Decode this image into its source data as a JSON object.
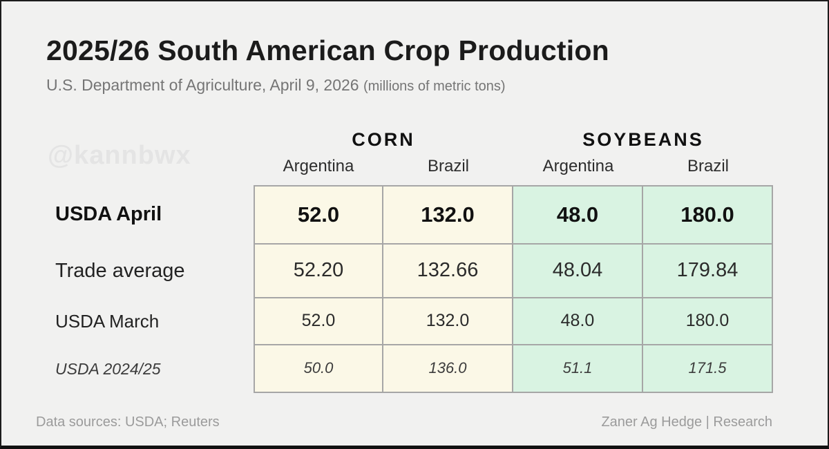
{
  "header": {
    "title": "2025/26 South American Crop Production",
    "subtitle": "U.S. Department of Agriculture, April 9, 2026",
    "subtitle_note": "(millions of metric tons)"
  },
  "watermark": "@kannbwx",
  "table": {
    "groups": [
      {
        "label": "CORN"
      },
      {
        "label": "SOYBEANS"
      }
    ],
    "columns": [
      "Argentina",
      "Brazil",
      "Argentina",
      "Brazil"
    ],
    "rows": [
      {
        "label": "USDA April",
        "values": [
          "52.0",
          "132.0",
          "48.0",
          "180.0"
        ]
      },
      {
        "label": "Trade average",
        "values": [
          "52.20",
          "132.66",
          "48.04",
          "179.84"
        ]
      },
      {
        "label": "USDA March",
        "values": [
          "52.0",
          "132.0",
          "48.0",
          "180.0"
        ]
      },
      {
        "label": "USDA 2024/25",
        "values": [
          "50.0",
          "136.0",
          "51.1",
          "171.5"
        ]
      }
    ]
  },
  "chart_data": {
    "type": "table",
    "title": "2025/26 South American Crop Production",
    "subtitle": "U.S. Department of Agriculture, April 9, 2026",
    "units": "millions of metric tons",
    "column_groups": [
      "CORN",
      "CORN",
      "SOYBEANS",
      "SOYBEANS"
    ],
    "columns": [
      "Corn Argentina",
      "Corn Brazil",
      "Soybeans Argentina",
      "Soybeans Brazil"
    ],
    "rows": [
      {
        "label": "USDA April",
        "values": [
          52.0,
          132.0,
          48.0,
          180.0
        ]
      },
      {
        "label": "Trade average",
        "values": [
          52.2,
          132.66,
          48.04,
          179.84
        ]
      },
      {
        "label": "USDA March",
        "values": [
          52.0,
          132.0,
          48.0,
          180.0
        ]
      },
      {
        "label": "USDA 2024/25",
        "values": [
          50.0,
          136.0,
          51.1,
          171.5
        ]
      }
    ]
  },
  "footer": {
    "left": "Data sources: USDA; Reuters",
    "right": "Zaner Ag Hedge | Research"
  },
  "colors": {
    "corn_cell_bg": "#fbf8e7",
    "soy_cell_bg": "#d9f3e2",
    "cell_border": "#a6a6a6",
    "page_bg": "#f1f1f0",
    "frame": "#1c1c1c",
    "muted_text": "#9b9b9b",
    "watermark_text": "#e4e4e4"
  }
}
